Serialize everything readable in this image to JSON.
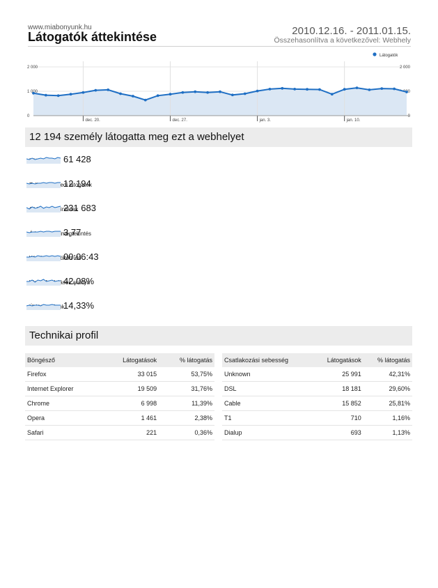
{
  "header": {
    "site_url": "www.miabonyunk.hu",
    "title": "Látogatók áttekintése",
    "date_range": "2010.12.16. - 2011.01.15.",
    "comparison": "Összehasonlítva a következővel: Webhely"
  },
  "chart_data": {
    "type": "area",
    "legend": "Látogatók",
    "legend_position": "top-right",
    "y_ticks": [
      "2 000",
      "1 000",
      "0"
    ],
    "x_ticks": [
      "dec. 20.",
      "dec. 27.",
      "jan. 3.",
      "jan. 10."
    ],
    "ylim": [
      0,
      2000
    ],
    "grid": true,
    "color": "#1f6fc4",
    "fill": "#dbe7f4",
    "series": [
      {
        "x": [
          "2010-12-16",
          "2010-12-17",
          "2010-12-18",
          "2010-12-19",
          "2010-12-20",
          "2010-12-21",
          "2010-12-22",
          "2010-12-23",
          "2010-12-24",
          "2010-12-25",
          "2010-12-26",
          "2010-12-27",
          "2010-12-28",
          "2010-12-29",
          "2010-12-30",
          "2010-12-31",
          "2011-01-01",
          "2011-01-02",
          "2011-01-03",
          "2011-01-04",
          "2011-01-05",
          "2011-01-06",
          "2011-01-07",
          "2011-01-08",
          "2011-01-09",
          "2011-01-10",
          "2011-01-11",
          "2011-01-12",
          "2011-01-13",
          "2011-01-14",
          "2011-01-15"
        ],
        "values": [
          920,
          840,
          820,
          880,
          950,
          1040,
          1060,
          900,
          800,
          640,
          820,
          880,
          950,
          980,
          950,
          980,
          850,
          900,
          1010,
          1090,
          1120,
          1090,
          1080,
          1070,
          880,
          1080,
          1140,
          1060,
          1110,
          1100,
          970
        ]
      }
    ]
  },
  "summary": {
    "title": "12 194 személy látogatta meg ezt a webhelyet",
    "metrics": [
      {
        "value": "61 428",
        "label": "Látogatások"
      },
      {
        "value": "12 194",
        "label": "Teljesen egyedi látogatók"
      },
      {
        "value": "231 683",
        "label": "Oldalmegtekintések"
      },
      {
        "value": "3,77",
        "label": "Átlagos oldalmegtekintés"
      },
      {
        "value": "00:06:43",
        "label": "Webhelyen töltött idő"
      },
      {
        "value": "42,08%",
        "label": "Visszafordulások aránya"
      },
      {
        "value": "14,33%",
        "label": "Új látogatások"
      }
    ],
    "sparkline_color": "#1f6fc4",
    "sparkline_fill": "#dbe7f4"
  },
  "tech": {
    "title": "Technikai profil",
    "browsers": {
      "headers": [
        "Böngésző",
        "Látogatások",
        "% látogatás"
      ],
      "rows": [
        [
          "Firefox",
          "33 015",
          "53,75%"
        ],
        [
          "Internet Explorer",
          "19 509",
          "31,76%"
        ],
        [
          "Chrome",
          "6 998",
          "11,39%"
        ],
        [
          "Opera",
          "1 461",
          "2,38%"
        ],
        [
          "Safari",
          "221",
          "0,36%"
        ]
      ]
    },
    "connections": {
      "headers": [
        "Csatlakozási sebesség",
        "Látogatások",
        "% látogatás"
      ],
      "rows": [
        [
          "Unknown",
          "25 991",
          "42,31%"
        ],
        [
          "DSL",
          "18 181",
          "29,60%"
        ],
        [
          "Cable",
          "15 852",
          "25,81%"
        ],
        [
          "T1",
          "710",
          "1,16%"
        ],
        [
          "Dialup",
          "693",
          "1,13%"
        ]
      ]
    }
  }
}
